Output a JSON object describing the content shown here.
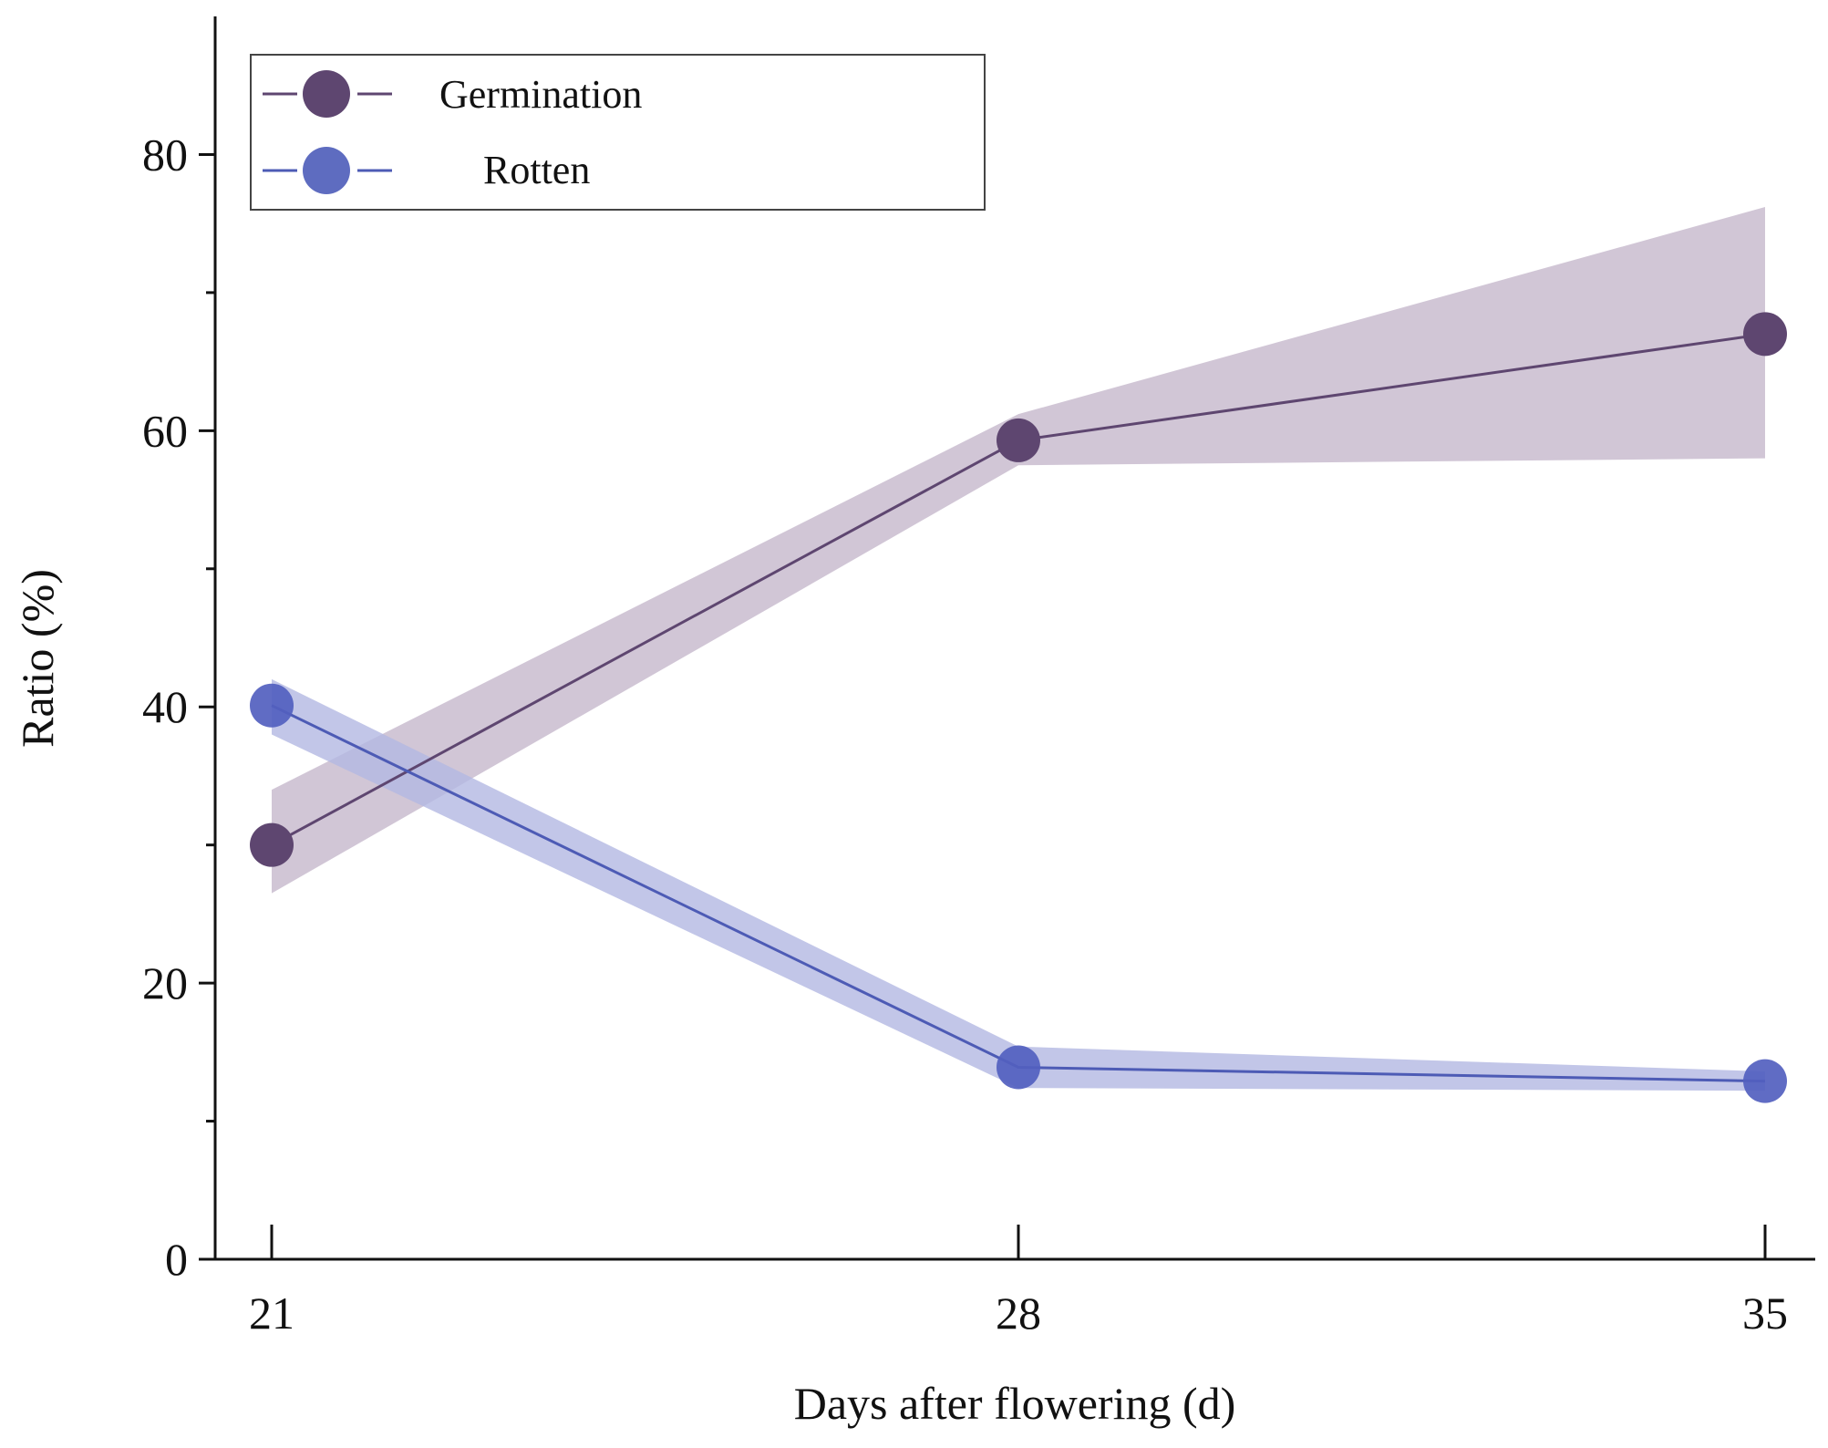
{
  "chart_data": {
    "type": "line",
    "title": "",
    "xlabel": "Days after flowering (d)",
    "ylabel": "Ratio (%)",
    "x": [
      21,
      28,
      35
    ],
    "x_tick_labels": [
      "21",
      "28",
      "35"
    ],
    "y_tick_labels": [
      "0",
      "20",
      "40",
      "60",
      "80"
    ],
    "y_ticks": [
      0,
      20,
      40,
      60,
      80
    ],
    "y_minor_ticks": [
      10,
      30,
      50,
      70
    ],
    "ylim": [
      0,
      90
    ],
    "xlim": [
      20.4,
      35.5
    ],
    "grid": false,
    "legend_position": "top-left",
    "series": [
      {
        "name": "Germination",
        "color": "#5e4670",
        "band_color": "#c9bccf",
        "marker": "circle",
        "values": [
          30,
          59.3,
          67
        ],
        "band_lower": [
          26.5,
          57.5,
          58
        ],
        "band_upper": [
          34,
          61.2,
          76.2
        ]
      },
      {
        "name": "Rotten",
        "color": "#4d5bb5",
        "band_color": "#b3b8e2",
        "marker": "circle",
        "values": [
          40.1,
          13.9,
          12.9
        ],
        "band_lower": [
          38,
          12.4,
          12.2
        ],
        "band_upper": [
          42,
          15.4,
          13.6
        ]
      }
    ]
  }
}
